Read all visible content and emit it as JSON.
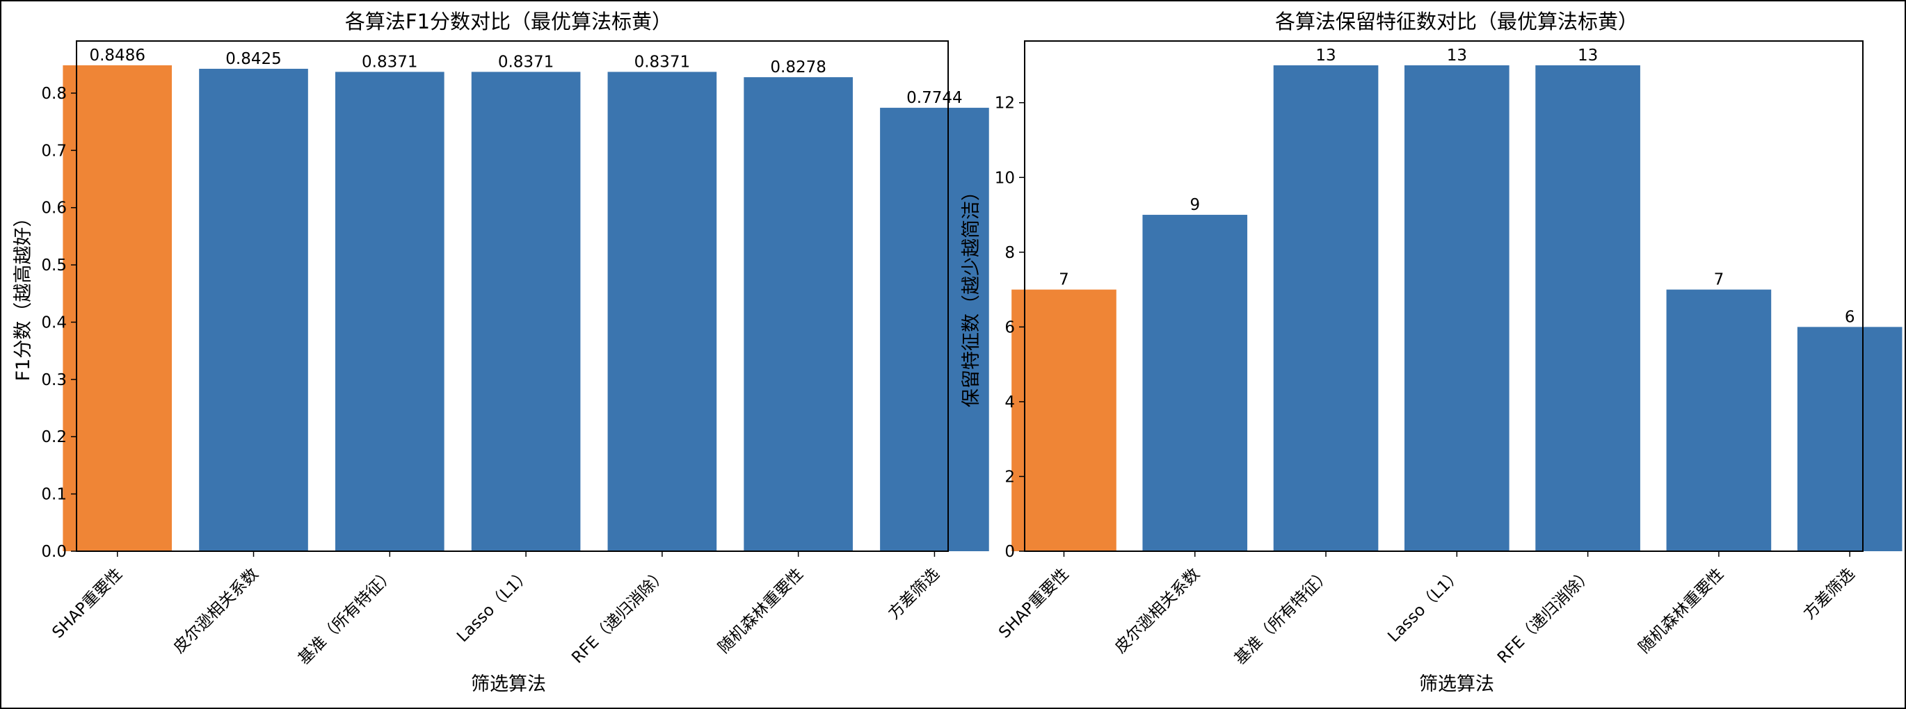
{
  "colors": {
    "default": "#3b75af",
    "highlight": "#ef8536"
  },
  "chart_data": [
    {
      "type": "bar",
      "title": "各算法F1分数对比（最优算法标黄）",
      "xlabel": "筛选算法",
      "ylabel": "F1分数（越高越好）",
      "categories": [
        "SHAP重要性",
        "皮尔逊相关系数",
        "基准（所有特征）",
        "Lasso（L1）",
        "RFE（递归消除）",
        "随机森林重要性",
        "方差筛选"
      ],
      "values": [
        0.8486,
        0.8425,
        0.8371,
        0.8371,
        0.8371,
        0.8278,
        0.7744
      ],
      "value_labels": [
        "0.8486",
        "0.8425",
        "0.8371",
        "0.8371",
        "0.8371",
        "0.8278",
        "0.7744"
      ],
      "highlight_index": 0,
      "ylim": [
        0,
        0.891
      ],
      "yticks": [
        0.0,
        0.1,
        0.2,
        0.3,
        0.4,
        0.5,
        0.6,
        0.7,
        0.8
      ],
      "ytick_labels": [
        "0.0",
        "0.1",
        "0.2",
        "0.3",
        "0.4",
        "0.5",
        "0.6",
        "0.7",
        "0.8"
      ],
      "grid": false
    },
    {
      "type": "bar",
      "title": "各算法保留特征数对比（最优算法标黄）",
      "xlabel": "筛选算法",
      "ylabel": "保留特征数（越少越简洁）",
      "categories": [
        "SHAP重要性",
        "皮尔逊相关系数",
        "基准（所有特征）",
        "Lasso（L1）",
        "RFE（递归消除）",
        "随机森林重要性",
        "方差筛选"
      ],
      "values": [
        7,
        9,
        13,
        13,
        13,
        7,
        6
      ],
      "value_labels": [
        "7",
        "9",
        "13",
        "13",
        "13",
        "7",
        "6"
      ],
      "highlight_index": 0,
      "ylim": [
        0,
        13.65
      ],
      "yticks": [
        0,
        2,
        4,
        6,
        8,
        10,
        12
      ],
      "ytick_labels": [
        "0",
        "2",
        "4",
        "6",
        "8",
        "10",
        "12"
      ],
      "grid": false
    }
  ]
}
